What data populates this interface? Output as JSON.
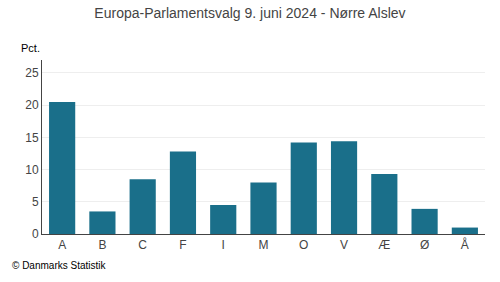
{
  "chart_data": {
    "type": "bar",
    "title": "Europa-Parlamentsvalg 9. juni 2024 - Nørre Alslev",
    "categories": [
      "A",
      "B",
      "C",
      "F",
      "I",
      "M",
      "O",
      "V",
      "Æ",
      "Ø",
      "Å"
    ],
    "values": [
      20.5,
      3.5,
      8.5,
      12.8,
      4.5,
      8.0,
      14.2,
      14.4,
      9.3,
      3.9,
      1.0
    ],
    "color": "#1a6f8a",
    "ylabel": "Pct.",
    "ylim": [
      0,
      27
    ],
    "yticks": [
      0,
      5,
      10,
      15,
      20,
      25
    ],
    "grid": true,
    "annotations": [
      "© Danmarks Statistik"
    ]
  }
}
